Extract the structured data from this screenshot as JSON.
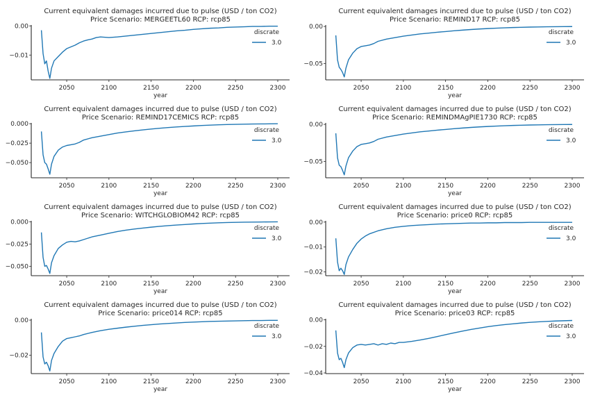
{
  "chart_data": [
    {
      "type": "line",
      "title": "Current equivalent damages incurred due to pulse (USD / ton CO2)",
      "subtitle": "Price Scenario: MERGEETL60 RCP: rcp85",
      "xlabel": "year",
      "ylabel": "",
      "xticks": [
        2050,
        2100,
        2150,
        2200,
        2250,
        2300
      ],
      "yticks": [
        0.0,
        -0.01
      ],
      "ytick_labels": [
        "0.00",
        "−0.01"
      ],
      "ylim": [
        -0.0185,
        0.0003
      ],
      "xlim": [
        2008,
        2314
      ],
      "legend": {
        "title": "discrate",
        "placement": "top-right",
        "entries": [
          "3.0"
        ]
      },
      "series": [
        {
          "name": "3.0",
          "color": "#1f77b4",
          "x": [
            2020,
            2022,
            2024,
            2026,
            2028,
            2030,
            2032,
            2035,
            2040,
            2045,
            2050,
            2055,
            2060,
            2065,
            2070,
            2075,
            2080,
            2085,
            2090,
            2100,
            2110,
            2120,
            2130,
            2140,
            2150,
            2160,
            2170,
            2180,
            2190,
            2200,
            2210,
            2220,
            2230,
            2240,
            2250,
            2260,
            2270,
            2280,
            2290,
            2300
          ],
          "y": [
            -0.0015,
            -0.0095,
            -0.013,
            -0.012,
            -0.0155,
            -0.018,
            -0.0145,
            -0.012,
            -0.0105,
            -0.009,
            -0.0078,
            -0.0072,
            -0.0066,
            -0.0058,
            -0.0052,
            -0.0048,
            -0.0045,
            -0.004,
            -0.0038,
            -0.004,
            -0.0038,
            -0.0035,
            -0.0032,
            -0.0029,
            -0.0026,
            -0.0023,
            -0.002,
            -0.0017,
            -0.0015,
            -0.0012,
            -0.001,
            -0.0008,
            -0.0007,
            -0.0005,
            -0.0004,
            -0.0003,
            -0.0002,
            -0.0002,
            -0.0001,
            -0.0001
          ]
        }
      ]
    },
    {
      "type": "line",
      "title": "Current equivalent damages incurred due to pulse (USD / ton CO2)",
      "subtitle": "Price Scenario: REMIND17 RCP: rcp85",
      "xlabel": "year",
      "ylabel": "",
      "xticks": [
        2050,
        2100,
        2150,
        2200,
        2250,
        2300
      ],
      "yticks": [
        0.0,
        -0.05
      ],
      "ytick_labels": [
        "0.00",
        "−0.05"
      ],
      "ylim": [
        -0.072,
        0.002
      ],
      "xlim": [
        2008,
        2314
      ],
      "legend": {
        "title": "discrate",
        "placement": "top-right",
        "entries": [
          "3.0"
        ]
      },
      "series": [
        {
          "name": "3.0",
          "color": "#1f77b4",
          "x": [
            2020,
            2022,
            2024,
            2026,
            2028,
            2030,
            2032,
            2035,
            2040,
            2045,
            2050,
            2055,
            2060,
            2065,
            2070,
            2080,
            2090,
            2100,
            2110,
            2120,
            2130,
            2140,
            2150,
            2160,
            2170,
            2180,
            2190,
            2200,
            2210,
            2220,
            2230,
            2240,
            2250,
            2260,
            2270,
            2280,
            2290,
            2300
          ],
          "y": [
            -0.012,
            -0.045,
            -0.055,
            -0.058,
            -0.062,
            -0.068,
            -0.056,
            -0.045,
            -0.036,
            -0.03,
            -0.027,
            -0.026,
            -0.025,
            -0.023,
            -0.02,
            -0.017,
            -0.015,
            -0.013,
            -0.0115,
            -0.01,
            -0.009,
            -0.0078,
            -0.0068,
            -0.0058,
            -0.0049,
            -0.0041,
            -0.0034,
            -0.0028,
            -0.0023,
            -0.0018,
            -0.0014,
            -0.0011,
            -0.0008,
            -0.0006,
            -0.0004,
            -0.0003,
            -0.0002,
            -0.0001
          ]
        }
      ]
    },
    {
      "type": "line",
      "title": "Current equivalent damages incurred due to pulse (USD / ton CO2)",
      "subtitle": "Price Scenario: REMIND17CEMICS RCP: rcp85",
      "xlabel": "year",
      "ylabel": "",
      "xticks": [
        2050,
        2100,
        2150,
        2200,
        2250,
        2300
      ],
      "yticks": [
        0.0,
        -0.025,
        -0.05
      ],
      "ytick_labels": [
        "0.000",
        "−0.025",
        "−0.050"
      ],
      "ylim": [
        -0.0695,
        0.001
      ],
      "xlim": [
        2008,
        2314
      ],
      "legend": {
        "title": "discrate",
        "placement": "top-right",
        "entries": [
          "3.0"
        ]
      },
      "series": [
        {
          "name": "3.0",
          "color": "#1f77b4",
          "x": [
            2020,
            2022,
            2024,
            2026,
            2028,
            2030,
            2032,
            2035,
            2040,
            2045,
            2050,
            2055,
            2060,
            2065,
            2070,
            2080,
            2090,
            2100,
            2110,
            2120,
            2130,
            2140,
            2150,
            2160,
            2170,
            2180,
            2190,
            2200,
            2210,
            2220,
            2230,
            2240,
            2250,
            2260,
            2270,
            2280,
            2290,
            2300
          ],
          "y": [
            -0.01,
            -0.04,
            -0.05,
            -0.052,
            -0.058,
            -0.065,
            -0.052,
            -0.042,
            -0.034,
            -0.03,
            -0.028,
            -0.027,
            -0.026,
            -0.024,
            -0.021,
            -0.018,
            -0.016,
            -0.014,
            -0.012,
            -0.0105,
            -0.0092,
            -0.008,
            -0.0069,
            -0.0059,
            -0.005,
            -0.0042,
            -0.0035,
            -0.0029,
            -0.0023,
            -0.0018,
            -0.0014,
            -0.0011,
            -0.0008,
            -0.0006,
            -0.0004,
            -0.0003,
            -0.0002,
            -0.0001
          ]
        }
      ]
    },
    {
      "type": "line",
      "title": "Current equivalent damages incurred due to pulse (USD / ton CO2)",
      "subtitle": "Price Scenario: REMINDMAgPIE1730 RCP: rcp85",
      "xlabel": "year",
      "ylabel": "",
      "xticks": [
        2050,
        2100,
        2150,
        2200,
        2250,
        2300
      ],
      "yticks": [
        0.0,
        -0.05
      ],
      "ytick_labels": [
        "0.00",
        "−0.05"
      ],
      "ylim": [
        -0.072,
        0.002
      ],
      "xlim": [
        2008,
        2314
      ],
      "legend": {
        "title": "discrate",
        "placement": "top-right",
        "entries": [
          "3.0"
        ]
      },
      "series": [
        {
          "name": "3.0",
          "color": "#1f77b4",
          "x": [
            2020,
            2022,
            2024,
            2026,
            2028,
            2030,
            2032,
            2035,
            2040,
            2045,
            2050,
            2055,
            2060,
            2065,
            2070,
            2080,
            2090,
            2100,
            2110,
            2120,
            2130,
            2140,
            2150,
            2160,
            2170,
            2180,
            2190,
            2200,
            2210,
            2220,
            2230,
            2240,
            2250,
            2260,
            2270,
            2280,
            2290,
            2300
          ],
          "y": [
            -0.012,
            -0.045,
            -0.055,
            -0.057,
            -0.062,
            -0.068,
            -0.056,
            -0.045,
            -0.036,
            -0.03,
            -0.027,
            -0.026,
            -0.025,
            -0.023,
            -0.02,
            -0.017,
            -0.015,
            -0.013,
            -0.0115,
            -0.01,
            -0.009,
            -0.0078,
            -0.0068,
            -0.0058,
            -0.0049,
            -0.0041,
            -0.0034,
            -0.0028,
            -0.0023,
            -0.0018,
            -0.0014,
            -0.0011,
            -0.0008,
            -0.0006,
            -0.0004,
            -0.0003,
            -0.0002,
            -0.0001
          ]
        }
      ]
    },
    {
      "type": "line",
      "title": "Current equivalent damages incurred due to pulse (USD / ton CO2)",
      "subtitle": "Price Scenario: WITCHGLOBIOM42 RCP: rcp85",
      "xlabel": "year",
      "ylabel": "",
      "xticks": [
        2050,
        2100,
        2150,
        2200,
        2250,
        2300
      ],
      "yticks": [
        0.0,
        -0.025,
        -0.05
      ],
      "ytick_labels": [
        "0.000",
        "−0.025",
        "−0.050"
      ],
      "ylim": [
        -0.0605,
        0.001
      ],
      "xlim": [
        2008,
        2314
      ],
      "legend": {
        "title": "discrate",
        "placement": "top-right",
        "entries": [
          "3.0"
        ]
      },
      "series": [
        {
          "name": "3.0",
          "color": "#1f77b4",
          "x": [
            2020,
            2022,
            2024,
            2026,
            2028,
            2030,
            2032,
            2035,
            2040,
            2045,
            2050,
            2055,
            2060,
            2065,
            2070,
            2080,
            2090,
            2100,
            2110,
            2120,
            2130,
            2140,
            2150,
            2160,
            2170,
            2180,
            2190,
            2200,
            2210,
            2220,
            2230,
            2240,
            2250,
            2260,
            2270,
            2280,
            2290,
            2300
          ],
          "y": [
            -0.012,
            -0.04,
            -0.05,
            -0.049,
            -0.053,
            -0.058,
            -0.046,
            -0.038,
            -0.03,
            -0.026,
            -0.023,
            -0.022,
            -0.0225,
            -0.0215,
            -0.02,
            -0.017,
            -0.015,
            -0.013,
            -0.011,
            -0.0095,
            -0.0082,
            -0.0071,
            -0.0061,
            -0.0052,
            -0.0044,
            -0.0037,
            -0.0031,
            -0.0025,
            -0.002,
            -0.0016,
            -0.0012,
            -0.0009,
            -0.0007,
            -0.0005,
            -0.0004,
            -0.0003,
            -0.0002,
            -0.0001
          ]
        }
      ]
    },
    {
      "type": "line",
      "title": "Current equivalent damages incurred due to pulse (USD / ton CO2)",
      "subtitle": "Price Scenario: price0 RCP: rcp85",
      "xlabel": "year",
      "ylabel": "",
      "xticks": [
        2050,
        2100,
        2150,
        2200,
        2250,
        2300
      ],
      "yticks": [
        0.0,
        -0.01,
        -0.02
      ],
      "ytick_labels": [
        "0.00",
        "−0.01",
        "−0.02"
      ],
      "ylim": [
        -0.0215,
        0.0005
      ],
      "xlim": [
        2008,
        2314
      ],
      "legend": {
        "title": "discrate",
        "placement": "top-right",
        "entries": [
          "3.0"
        ]
      },
      "series": [
        {
          "name": "3.0",
          "color": "#1f77b4",
          "x": [
            2020,
            2022,
            2024,
            2026,
            2028,
            2030,
            2032,
            2035,
            2040,
            2045,
            2050,
            2055,
            2060,
            2070,
            2080,
            2090,
            2100,
            2110,
            2120,
            2130,
            2140,
            2150,
            2160,
            2170,
            2180,
            2190,
            2200,
            2210,
            2220,
            2230,
            2240,
            2250,
            2260,
            2270,
            2280,
            2290,
            2300
          ],
          "y": [
            -0.0065,
            -0.016,
            -0.0195,
            -0.0185,
            -0.0195,
            -0.021,
            -0.017,
            -0.014,
            -0.011,
            -0.0085,
            -0.0068,
            -0.0056,
            -0.0047,
            -0.0035,
            -0.0027,
            -0.0021,
            -0.0017,
            -0.0014,
            -0.0012,
            -0.001,
            -0.0008,
            -0.0007,
            -0.0006,
            -0.0005,
            -0.0004,
            -0.0004,
            -0.0003,
            -0.0003,
            -0.0002,
            -0.0002,
            -0.0002,
            -0.0001,
            -0.0001,
            -0.0001,
            -0.0001,
            -0.0001,
            -0.0001
          ]
        }
      ]
    },
    {
      "type": "line",
      "title": "Current equivalent damages incurred due to pulse (USD / ton CO2)",
      "subtitle": "Price Scenario: price014 RCP: rcp85",
      "xlabel": "year",
      "ylabel": "",
      "xticks": [
        2050,
        2100,
        2150,
        2200,
        2250,
        2300
      ],
      "yticks": [
        0.0,
        -0.02
      ],
      "ytick_labels": [
        "0.00",
        "−0.02"
      ],
      "ylim": [
        -0.0305,
        0.0008
      ],
      "xlim": [
        2008,
        2314
      ],
      "legend": {
        "title": "discrate",
        "placement": "top-right",
        "entries": [
          "3.0"
        ]
      },
      "series": [
        {
          "name": "3.0",
          "color": "#1f77b4",
          "x": [
            2020,
            2022,
            2024,
            2026,
            2028,
            2030,
            2032,
            2035,
            2040,
            2045,
            2050,
            2055,
            2060,
            2065,
            2070,
            2080,
            2090,
            2100,
            2110,
            2120,
            2130,
            2140,
            2150,
            2160,
            2170,
            2180,
            2190,
            2200,
            2210,
            2220,
            2230,
            2240,
            2250,
            2260,
            2270,
            2280,
            2290,
            2300
          ],
          "y": [
            -0.007,
            -0.021,
            -0.025,
            -0.024,
            -0.026,
            -0.029,
            -0.023,
            -0.019,
            -0.015,
            -0.012,
            -0.0105,
            -0.01,
            -0.0095,
            -0.009,
            -0.0082,
            -0.007,
            -0.006,
            -0.0052,
            -0.0046,
            -0.004,
            -0.0035,
            -0.003,
            -0.0026,
            -0.0022,
            -0.0019,
            -0.0016,
            -0.0013,
            -0.0011,
            -0.0009,
            -0.0007,
            -0.0006,
            -0.0005,
            -0.0004,
            -0.0003,
            -0.0002,
            -0.0002,
            -0.0001,
            -0.0001
          ]
        }
      ]
    },
    {
      "type": "line",
      "title": "Current equivalent damages incurred due to pulse (USD / ton CO2)",
      "subtitle": "Price Scenario: price03 RCP: rcp85",
      "xlabel": "year",
      "ylabel": "",
      "xticks": [
        2050,
        2100,
        2150,
        2200,
        2250,
        2300
      ],
      "yticks": [
        0.0,
        -0.02,
        -0.04
      ],
      "ytick_labels": [
        "0.00",
        "−0.02",
        "−0.04"
      ],
      "ylim": [
        -0.0405,
        0.0008
      ],
      "xlim": [
        2008,
        2314
      ],
      "legend": {
        "title": "discrate",
        "placement": "top-right",
        "entries": [
          "3.0"
        ]
      },
      "series": [
        {
          "name": "3.0",
          "color": "#1f77b4",
          "x": [
            2020,
            2022,
            2024,
            2026,
            2028,
            2030,
            2032,
            2035,
            2040,
            2045,
            2050,
            2055,
            2060,
            2065,
            2070,
            2075,
            2080,
            2085,
            2090,
            2095,
            2100,
            2110,
            2120,
            2130,
            2140,
            2150,
            2160,
            2170,
            2180,
            2190,
            2200,
            2210,
            2220,
            2230,
            2240,
            2250,
            2260,
            2270,
            2280,
            2290,
            2300
          ],
          "y": [
            -0.008,
            -0.025,
            -0.03,
            -0.029,
            -0.032,
            -0.036,
            -0.03,
            -0.025,
            -0.021,
            -0.019,
            -0.0185,
            -0.019,
            -0.0185,
            -0.018,
            -0.019,
            -0.018,
            -0.0185,
            -0.0175,
            -0.018,
            -0.017,
            -0.017,
            -0.0162,
            -0.0152,
            -0.014,
            -0.0126,
            -0.0112,
            -0.0098,
            -0.0085,
            -0.0073,
            -0.0062,
            -0.0052,
            -0.0043,
            -0.0036,
            -0.003,
            -0.0024,
            -0.0019,
            -0.0015,
            -0.0012,
            -0.0009,
            -0.0007,
            -0.0005
          ]
        }
      ]
    }
  ]
}
